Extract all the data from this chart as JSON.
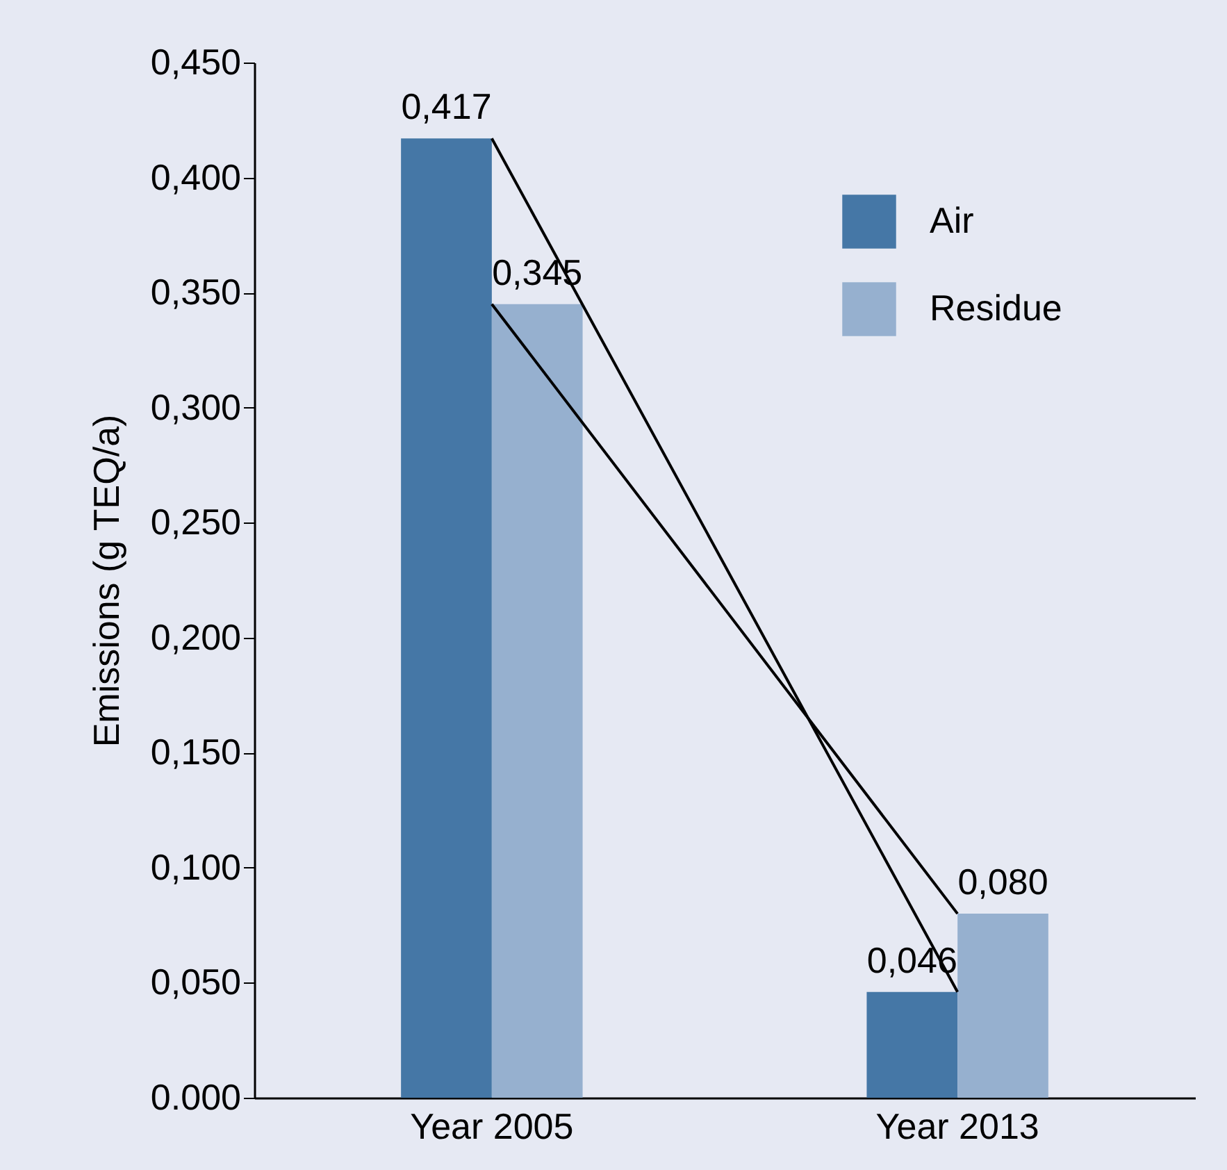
{
  "chart_data": {
    "type": "bar",
    "ylabel": "Emissions (g TEQ/a)",
    "categories": [
      "Year 2005",
      "Year 2013"
    ],
    "series": [
      {
        "name": "Air",
        "color": "#4577a6",
        "values": [
          0.417,
          0.046
        ],
        "value_labels": [
          "0,417",
          "0,046"
        ]
      },
      {
        "name": "Residue",
        "color": "#96b0cf",
        "values": [
          0.345,
          0.08
        ],
        "value_labels": [
          "0,345",
          "0,080"
        ]
      },
      {
        "type": "line",
        "color": "#000000",
        "values": [
          0.417,
          0.046
        ]
      },
      {
        "type": "line",
        "color": "#000000",
        "values": [
          0.345,
          0.08
        ]
      }
    ],
    "ylim": [
      0,
      0.45
    ],
    "yticks": [
      {
        "value": 0,
        "label": "0.000"
      },
      {
        "value": 0.05,
        "label": "0,050"
      },
      {
        "value": 0.1,
        "label": "0,100"
      },
      {
        "value": 0.15,
        "label": "0,150"
      },
      {
        "value": 0.2,
        "label": "0,200"
      },
      {
        "value": 0.25,
        "label": "0,250"
      },
      {
        "value": 0.3,
        "label": "0,300"
      },
      {
        "value": 0.35,
        "label": "0,350"
      },
      {
        "value": 0.4,
        "label": "0,400"
      },
      {
        "value": 0.45,
        "label": "0,450"
      }
    ],
    "grid": false,
    "legend": "top right"
  }
}
